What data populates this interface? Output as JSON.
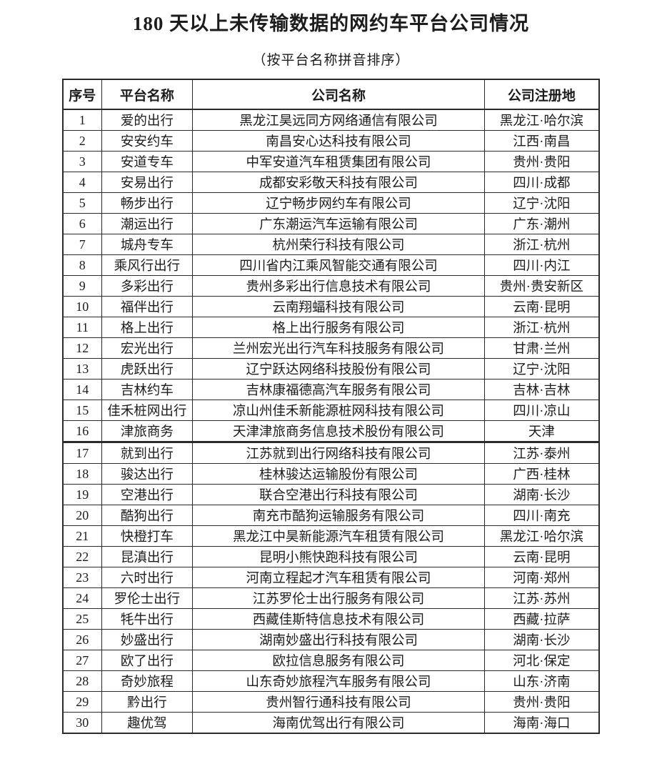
{
  "page": {
    "title": "180 天以上未传输数据的网约车平台公司情况",
    "subtitle": "（按平台名称拼音排序）"
  },
  "table": {
    "headers": [
      "序号",
      "平台名称",
      "公司名称",
      "公司注册地"
    ],
    "rows": [
      [
        "1",
        "爱的出行",
        "黑龙江昊远同方网络通信有限公司",
        "黑龙江·哈尔滨"
      ],
      [
        "2",
        "安安约车",
        "南昌安心达科技有限公司",
        "江西·南昌"
      ],
      [
        "3",
        "安道专车",
        "中军安道汽车租赁集团有限公司",
        "贵州·贵阳"
      ],
      [
        "4",
        "安易出行",
        "成都安彩敬天科技有限公司",
        "四川·成都"
      ],
      [
        "5",
        "畅步出行",
        "辽宁畅步网约车有限公司",
        "辽宁·沈阳"
      ],
      [
        "6",
        "潮运出行",
        "广东潮运汽车运输有限公司",
        "广东·潮州"
      ],
      [
        "7",
        "城舟专车",
        "杭州荣行科技有限公司",
        "浙江·杭州"
      ],
      [
        "8",
        "乘风行出行",
        "四川省内江乘风智能交通有限公司",
        "四川·内江"
      ],
      [
        "9",
        "多彩出行",
        "贵州多彩出行信息技术有限公司",
        "贵州·贵安新区"
      ],
      [
        "10",
        "福伴出行",
        "云南翔蝠科技有限公司",
        "云南·昆明"
      ],
      [
        "11",
        "格上出行",
        "格上出行服务有限公司",
        "浙江·杭州"
      ],
      [
        "12",
        "宏光出行",
        "兰州宏光出行汽车科技服务有限公司",
        "甘肃·兰州"
      ],
      [
        "13",
        "虎跃出行",
        "辽宁跃达网络科技股份有限公司",
        "辽宁·沈阳"
      ],
      [
        "14",
        "吉林约车",
        "吉林康福德高汽车服务有限公司",
        "吉林·吉林"
      ],
      [
        "15",
        "佳禾桩网出行",
        "凉山州佳禾新能源桩网科技有限公司",
        "四川·凉山"
      ],
      [
        "16",
        "津旅商务",
        "天津津旅商务信息技术股份有限公司",
        "天津"
      ],
      [
        "17",
        "就到出行",
        "江苏就到出行网络科技有限公司",
        "江苏·泰州"
      ],
      [
        "18",
        "骏达出行",
        "桂林骏达运输股份有限公司",
        "广西·桂林"
      ],
      [
        "19",
        "空港出行",
        "联合空港出行科技有限公司",
        "湖南·长沙"
      ],
      [
        "20",
        "酷狗出行",
        "南充市酷狗运输服务有限公司",
        "四川·南充"
      ],
      [
        "21",
        "快橙打车",
        "黑龙江中昊新能源汽车租赁有限公司",
        "黑龙江·哈尔滨"
      ],
      [
        "22",
        "昆滇出行",
        "昆明小熊快跑科技有限公司",
        "云南·昆明"
      ],
      [
        "23",
        "六时出行",
        "河南立程起才汽车租赁有限公司",
        "河南·郑州"
      ],
      [
        "24",
        "罗伦士出行",
        "江苏罗伦士出行服务有限公司",
        "江苏·苏州"
      ],
      [
        "25",
        "牦牛出行",
        "西藏佳斯特信息技术有限公司",
        "西藏·拉萨"
      ],
      [
        "26",
        "妙盛出行",
        "湖南妙盛出行科技有限公司",
        "湖南·长沙"
      ],
      [
        "27",
        "欧了出行",
        "欧拉信息服务有限公司",
        "河北·保定"
      ],
      [
        "28",
        "奇妙旅程",
        "山东奇妙旅程汽车服务有限公司",
        "山东·济南"
      ],
      [
        "29",
        "黔出行",
        "贵州智行通科技有限公司",
        "贵州·贵阳"
      ],
      [
        "30",
        "趣优驾",
        "海南优驾出行有限公司",
        "海南·海口"
      ]
    ]
  }
}
